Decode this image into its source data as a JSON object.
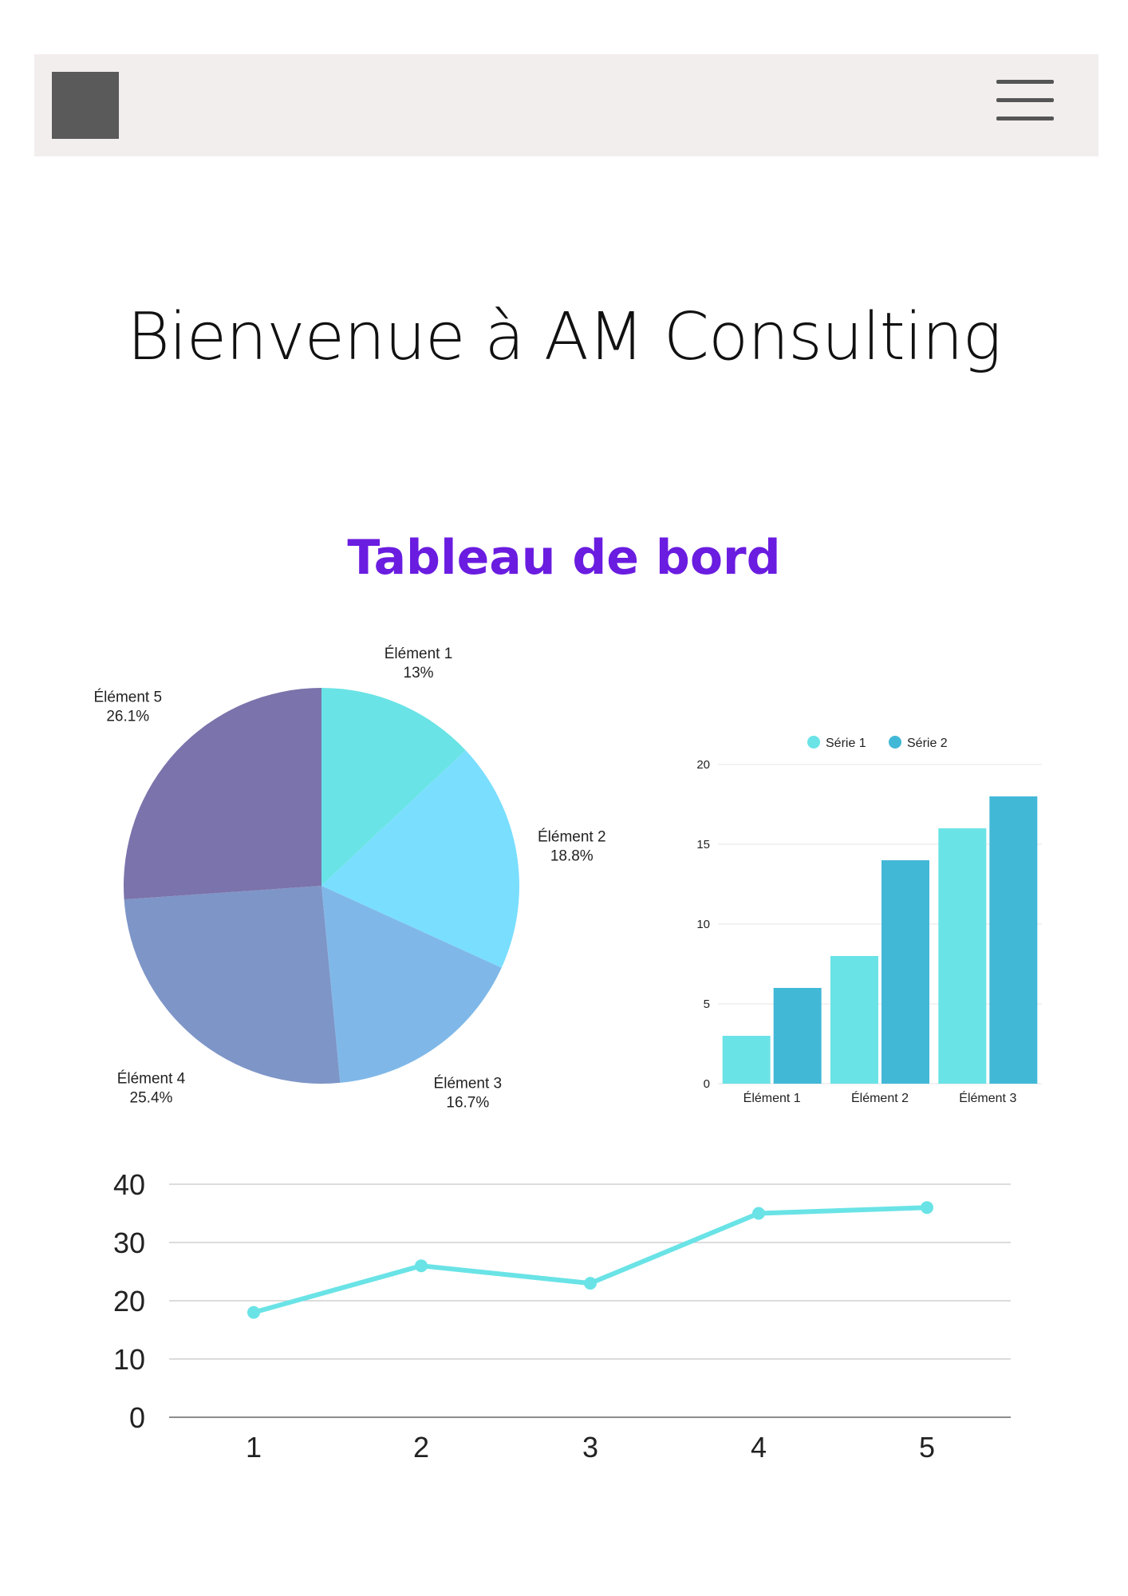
{
  "header": {
    "logo": "logo",
    "menu_icon": "hamburger-menu-icon"
  },
  "welcome_title": "Bienvenue à AM Consulting",
  "dashboard_title": "Tableau de bord",
  "colors": {
    "accent": "#6a1ce0",
    "pie": [
      "#6ae3e6",
      "#7adeff",
      "#7fb8e8",
      "#7e95c7",
      "#7b73ab"
    ],
    "series1": "#6ae3e6",
    "series2": "#42b8d7",
    "line": "#6ae3e6"
  },
  "chart_data": [
    {
      "type": "pie",
      "labels": [
        "Élément 1",
        "Élément 2",
        "Élément 3",
        "Élément 4",
        "Élément 5"
      ],
      "values": [
        13,
        18.8,
        16.7,
        25.4,
        26.1
      ],
      "value_labels": [
        "13%",
        "18.8%",
        "16.7%",
        "25.4%",
        "26.1%"
      ]
    },
    {
      "type": "bar",
      "categories": [
        "Élément 1",
        "Élément 2",
        "Élément 3"
      ],
      "series": [
        {
          "name": "Série 1",
          "values": [
            3,
            8,
            16
          ]
        },
        {
          "name": "Série 2",
          "values": [
            6,
            14,
            18
          ]
        }
      ],
      "ylim": [
        0,
        20
      ],
      "yticks": [
        0,
        5,
        10,
        15,
        20
      ],
      "legend": "top-center",
      "grid": true
    },
    {
      "type": "line",
      "x": [
        1,
        2,
        3,
        4,
        5
      ],
      "values": [
        18,
        26,
        23,
        35,
        36
      ],
      "ylim": [
        0,
        40
      ],
      "yticks": [
        0,
        10,
        20,
        30,
        40
      ],
      "grid": true
    }
  ]
}
